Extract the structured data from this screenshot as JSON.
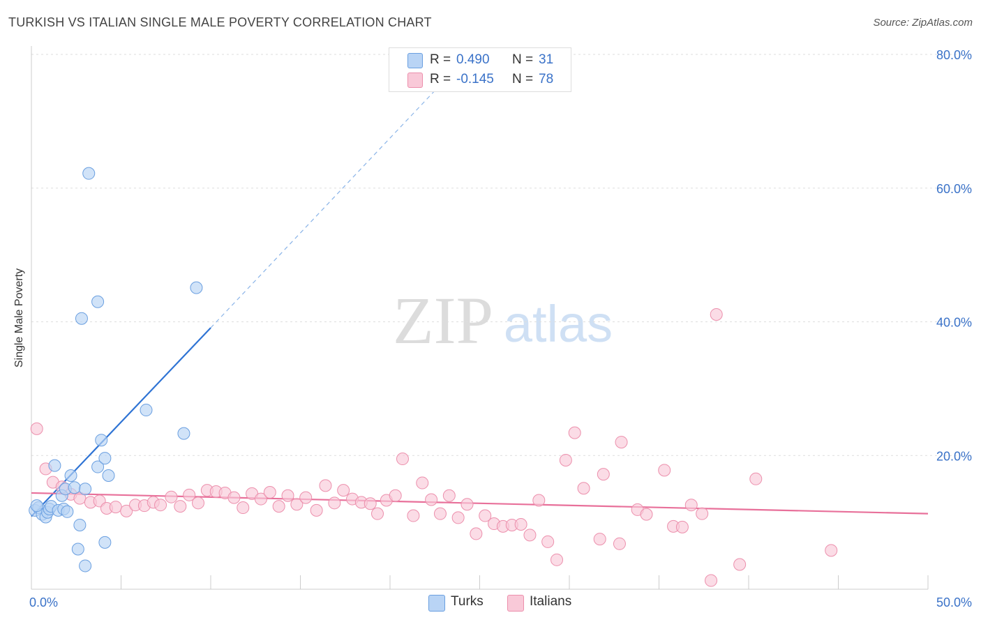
{
  "title": "TURKISH VS ITALIAN SINGLE MALE POVERTY CORRELATION CHART",
  "source": "Source: ZipAtlas.com",
  "watermark": {
    "zip": "ZIP",
    "atlas": "atlas"
  },
  "legend_stats": [
    {
      "series": "Turks",
      "r_label": "R =",
      "r_value": "0.490",
      "n_label": "N =",
      "n_value": "31",
      "fill": "#b9d4f5",
      "stroke": "#6a9fe0"
    },
    {
      "series": "Italians",
      "r_label": "R =",
      "r_value": "-0.145",
      "n_label": "N =",
      "n_value": "78",
      "fill": "#f9c9d8",
      "stroke": "#ec8fac"
    }
  ],
  "chart_data": {
    "type": "scatter",
    "title": "TURKISH VS ITALIAN SINGLE MALE POVERTY CORRELATION CHART",
    "xlabel": "",
    "ylabel": "Single Male Poverty",
    "xlim": [
      0,
      50
    ],
    "ylim": [
      0,
      80
    ],
    "x_tick_labels": [
      "0.0%",
      "50.0%"
    ],
    "y_tick_labels": [
      "20.0%",
      "40.0%",
      "60.0%",
      "80.0%"
    ],
    "y_ticks": [
      20,
      40,
      60,
      80
    ],
    "grid": true,
    "legend": "bottom-center",
    "series": [
      {
        "name": "Turks",
        "color": "#6a9fe0",
        "fill": "#b9d4f5",
        "trend_color": "#2e73d4",
        "trend": {
          "x0": 0,
          "y0": 10.9,
          "x1": 10,
          "y1": 39.1,
          "dashed_to_x": 23,
          "dashed_to_y": 76
        },
        "points": [
          [
            0.2,
            11.8
          ],
          [
            0.4,
            12.2
          ],
          [
            0.6,
            11.2
          ],
          [
            0.8,
            10.8
          ],
          [
            0.9,
            11.5
          ],
          [
            1.0,
            12.0
          ],
          [
            1.1,
            12.4
          ],
          [
            1.3,
            18.5
          ],
          [
            1.5,
            11.8
          ],
          [
            1.7,
            14.0
          ],
          [
            1.8,
            12.0
          ],
          [
            1.9,
            15.0
          ],
          [
            2.0,
            11.6
          ],
          [
            2.2,
            17.0
          ],
          [
            2.4,
            15.2
          ],
          [
            2.6,
            6.0
          ],
          [
            2.7,
            9.6
          ],
          [
            2.8,
            40.5
          ],
          [
            3.0,
            15.0
          ],
          [
            3.0,
            3.5
          ],
          [
            3.2,
            62.2
          ],
          [
            3.7,
            43.0
          ],
          [
            3.7,
            18.3
          ],
          [
            3.9,
            22.3
          ],
          [
            4.1,
            7.0
          ],
          [
            4.1,
            19.6
          ],
          [
            4.3,
            17.0
          ],
          [
            6.4,
            26.8
          ],
          [
            8.5,
            23.3
          ],
          [
            9.2,
            45.1
          ],
          [
            0.3,
            12.5
          ]
        ]
      },
      {
        "name": "Italians",
        "color": "#ec8fac",
        "fill": "#f9c9d8",
        "trend_color": "#e8709a",
        "trend": {
          "x0": 0,
          "y0": 14.4,
          "x1": 50,
          "y1": 11.3
        },
        "points": [
          [
            0.3,
            24.0
          ],
          [
            0.8,
            18.0
          ],
          [
            1.2,
            16.0
          ],
          [
            1.7,
            15.3
          ],
          [
            2.2,
            14.2
          ],
          [
            2.7,
            13.6
          ],
          [
            3.3,
            13.0
          ],
          [
            3.8,
            13.2
          ],
          [
            4.2,
            12.1
          ],
          [
            4.7,
            12.3
          ],
          [
            5.3,
            11.7
          ],
          [
            5.8,
            12.6
          ],
          [
            6.3,
            12.5
          ],
          [
            6.8,
            13.0
          ],
          [
            7.2,
            12.6
          ],
          [
            7.8,
            13.8
          ],
          [
            8.3,
            12.4
          ],
          [
            8.8,
            14.1
          ],
          [
            9.3,
            12.9
          ],
          [
            9.8,
            14.8
          ],
          [
            10.3,
            14.6
          ],
          [
            10.8,
            14.4
          ],
          [
            11.3,
            13.7
          ],
          [
            11.8,
            12.2
          ],
          [
            12.3,
            14.3
          ],
          [
            12.8,
            13.5
          ],
          [
            13.3,
            14.5
          ],
          [
            13.8,
            12.4
          ],
          [
            14.3,
            14.0
          ],
          [
            14.8,
            12.7
          ],
          [
            15.3,
            13.7
          ],
          [
            15.9,
            11.8
          ],
          [
            16.4,
            15.5
          ],
          [
            16.9,
            12.9
          ],
          [
            17.4,
            14.8
          ],
          [
            17.9,
            13.5
          ],
          [
            18.4,
            13.0
          ],
          [
            18.9,
            12.8
          ],
          [
            19.3,
            11.3
          ],
          [
            19.8,
            13.3
          ],
          [
            20.3,
            14.0
          ],
          [
            20.7,
            19.5
          ],
          [
            21.3,
            11.0
          ],
          [
            21.8,
            15.9
          ],
          [
            22.3,
            13.4
          ],
          [
            22.8,
            11.3
          ],
          [
            23.3,
            14.0
          ],
          [
            23.8,
            10.7
          ],
          [
            24.3,
            12.7
          ],
          [
            24.8,
            8.3
          ],
          [
            25.3,
            11.0
          ],
          [
            25.8,
            9.8
          ],
          [
            26.3,
            9.4
          ],
          [
            26.8,
            9.6
          ],
          [
            27.3,
            9.7
          ],
          [
            27.8,
            8.1
          ],
          [
            28.3,
            13.3
          ],
          [
            28.8,
            7.1
          ],
          [
            29.3,
            4.4
          ],
          [
            29.8,
            19.3
          ],
          [
            30.3,
            23.4
          ],
          [
            30.8,
            15.1
          ],
          [
            31.7,
            7.5
          ],
          [
            31.9,
            17.2
          ],
          [
            32.8,
            6.8
          ],
          [
            32.9,
            22.0
          ],
          [
            33.8,
            11.9
          ],
          [
            34.3,
            11.2
          ],
          [
            35.3,
            17.8
          ],
          [
            35.8,
            9.4
          ],
          [
            36.3,
            9.3
          ],
          [
            36.8,
            12.6
          ],
          [
            37.4,
            11.3
          ],
          [
            37.9,
            1.3
          ],
          [
            38.2,
            41.1
          ],
          [
            39.5,
            3.7
          ],
          [
            40.4,
            16.5
          ],
          [
            44.6,
            5.8
          ]
        ]
      }
    ]
  }
}
